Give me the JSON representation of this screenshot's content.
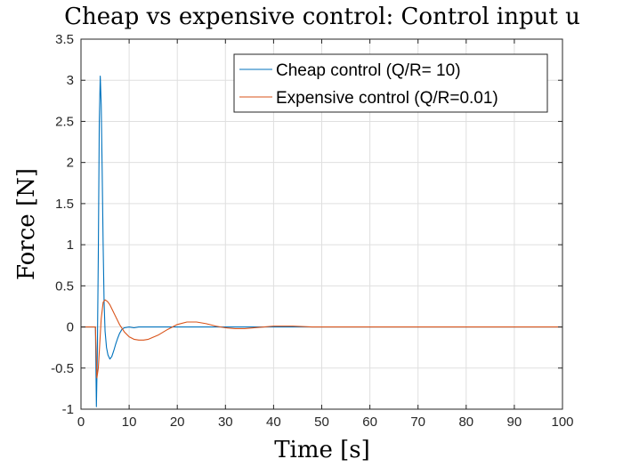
{
  "chart_data": {
    "type": "line",
    "title": "Cheap vs expensive control: Control input u",
    "xlabel": "Time [s]",
    "ylabel": "Force [N]",
    "xlim": [
      0,
      100
    ],
    "ylim": [
      -1,
      3.5
    ],
    "xticks": [
      0,
      10,
      20,
      30,
      40,
      50,
      60,
      70,
      80,
      90,
      100
    ],
    "yticks": [
      -1,
      -0.5,
      0,
      0.5,
      1,
      1.5,
      2,
      2.5,
      3,
      3.5
    ],
    "xtick_labels": [
      "0",
      "10",
      "20",
      "30",
      "40",
      "50",
      "60",
      "70",
      "80",
      "90",
      "100"
    ],
    "ytick_labels": [
      "-1",
      "-0.5",
      "0",
      "0.5",
      "1",
      "1.5",
      "2",
      "2.5",
      "3",
      "3.5"
    ],
    "grid": true,
    "legend_position": "top-right",
    "series": [
      {
        "name": "Cheap control (Q/R= 10)",
        "color": "#0072BD",
        "x": [
          0,
          3.0,
          3.2,
          3.4,
          3.6,
          3.8,
          4.0,
          4.2,
          4.4,
          4.6,
          4.8,
          5.0,
          5.3,
          5.6,
          6.0,
          6.4,
          6.8,
          7.2,
          7.6,
          8.0,
          8.5,
          9.0,
          10,
          11,
          12,
          14,
          16,
          20,
          30,
          100
        ],
        "y": [
          0,
          0,
          -0.97,
          -0.3,
          0.9,
          2.5,
          3.05,
          2.7,
          1.9,
          1.0,
          0.3,
          -0.05,
          -0.25,
          -0.34,
          -0.39,
          -0.36,
          -0.29,
          -0.21,
          -0.14,
          -0.08,
          -0.03,
          -0.01,
          0.0,
          -0.01,
          0.0,
          0.0,
          0.0,
          0.0,
          0.0,
          0.0
        ]
      },
      {
        "name": "Expensive control (Q/R=0.01)",
        "color": "#D95319",
        "x": [
          0,
          3.0,
          3.3,
          3.6,
          3.9,
          4.2,
          4.6,
          5.0,
          5.5,
          6.0,
          7.0,
          8.0,
          9.0,
          10,
          11,
          12,
          13,
          14,
          16,
          18,
          20,
          22,
          24,
          26,
          28,
          30,
          32,
          34,
          36,
          38,
          40,
          44,
          48,
          52,
          56,
          60,
          100
        ],
        "y": [
          0,
          0,
          -0.62,
          -0.5,
          -0.2,
          0.1,
          0.3,
          0.33,
          0.31,
          0.27,
          0.15,
          0.03,
          -0.06,
          -0.12,
          -0.15,
          -0.16,
          -0.16,
          -0.15,
          -0.1,
          -0.03,
          0.03,
          0.06,
          0.06,
          0.04,
          0.01,
          -0.01,
          -0.02,
          -0.02,
          -0.01,
          0.0,
          0.01,
          0.01,
          0.0,
          0.0,
          0.0,
          0.0,
          0.0
        ]
      }
    ]
  }
}
